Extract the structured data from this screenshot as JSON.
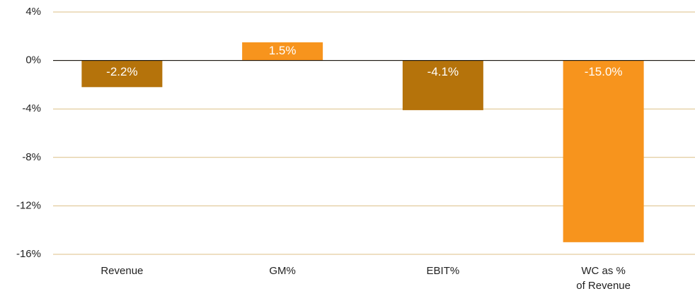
{
  "chart_data": {
    "type": "bar",
    "categories": [
      "Revenue",
      "GM%",
      "EBIT%",
      "WC as %\nof Revenue"
    ],
    "values": [
      -2.2,
      1.5,
      -4.1,
      -15.0
    ],
    "value_labels": [
      "-2.2%",
      "1.5%",
      "-4.1%",
      "-15.0%"
    ],
    "colors": [
      "#b5730b",
      "#f7941d",
      "#b5730b",
      "#f7941d"
    ],
    "ylim": [
      -16,
      4
    ],
    "yticks": [
      {
        "value": 4,
        "label": "4%"
      },
      {
        "value": 0,
        "label": "0%"
      },
      {
        "value": -4,
        "label": "-4%"
      },
      {
        "value": -8,
        "label": "-8%"
      },
      {
        "value": -12,
        "label": "-12%"
      },
      {
        "value": -16,
        "label": "-16%"
      }
    ],
    "grid": true
  }
}
